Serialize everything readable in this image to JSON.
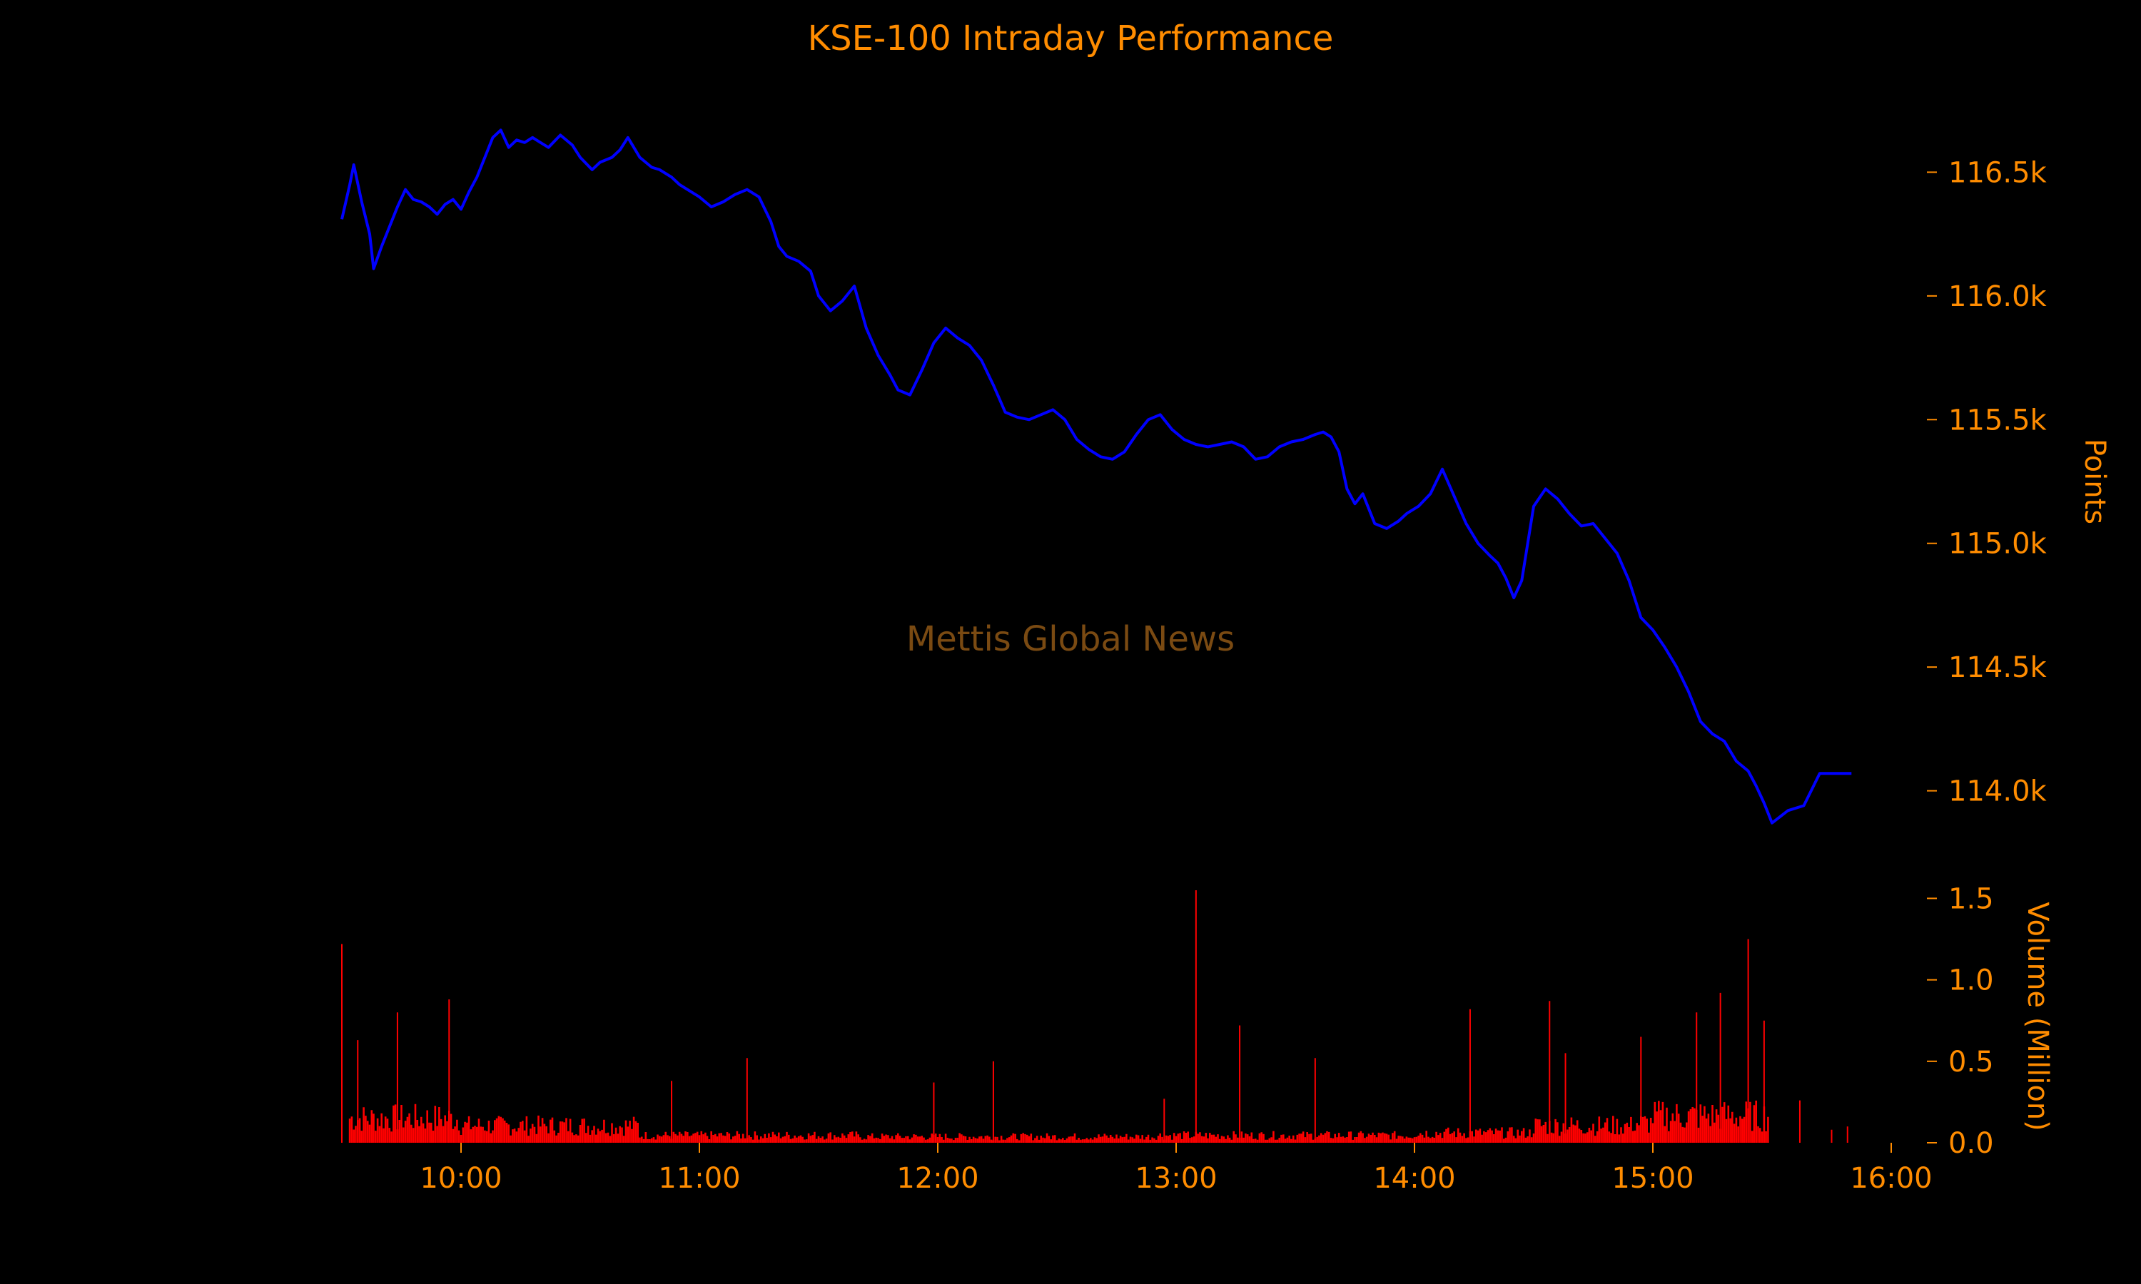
{
  "chart_data": {
    "type": "line",
    "title": "KSE-100 Intraday Performance",
    "watermark": "Mettis Global News",
    "price_panel": {
      "ylabel": "Points",
      "ylim": [
        113650,
        116850
      ],
      "yticks": [
        114000,
        114500,
        115000,
        115500,
        116000,
        116500
      ],
      "ytick_labels": [
        "114.0k",
        "114.5k",
        "115.0k",
        "115.5k",
        "116.0k",
        "116.5k"
      ],
      "series": [
        {
          "x": [
            "09:30",
            "09:32",
            "09:33",
            "09:35",
            "09:37",
            "09:38",
            "09:40",
            "09:42",
            "09:44",
            "09:46",
            "09:48",
            "09:50",
            "09:52",
            "09:54",
            "09:56",
            "09:58",
            "10:00",
            "10:02",
            "10:04",
            "10:06",
            "10:08",
            "10:10",
            "10:12",
            "10:14",
            "10:16",
            "10:18",
            "10:20",
            "10:22",
            "10:25",
            "10:28",
            "10:30",
            "10:33",
            "10:35",
            "10:38",
            "10:40",
            "10:42",
            "10:45",
            "10:48",
            "10:50",
            "10:53",
            "10:55",
            "10:58",
            "11:00",
            "11:03",
            "11:06",
            "11:09",
            "11:12",
            "11:15",
            "11:18",
            "11:20",
            "11:22",
            "11:25",
            "11:28",
            "11:30",
            "11:33",
            "11:36",
            "11:39",
            "11:42",
            "11:45",
            "11:48",
            "11:50",
            "11:53",
            "11:56",
            "11:59",
            "12:02",
            "12:05",
            "12:08",
            "12:11",
            "12:14",
            "12:17",
            "12:20",
            "12:23",
            "12:26",
            "12:29",
            "12:32",
            "12:35",
            "12:38",
            "12:41",
            "12:44",
            "12:47",
            "12:50",
            "12:53",
            "12:56",
            "12:59",
            "13:02",
            "13:05",
            "13:08",
            "13:11",
            "13:14",
            "13:17",
            "13:20",
            "13:23",
            "13:26",
            "13:29",
            "13:32",
            "13:35",
            "13:37",
            "13:39",
            "13:41",
            "13:43",
            "13:45",
            "13:47",
            "13:50",
            "13:53",
            "13:56",
            "13:58",
            "14:01",
            "14:04",
            "14:07",
            "14:10",
            "14:13",
            "14:16",
            "14:19",
            "14:21",
            "14:23",
            "14:25",
            "14:27",
            "14:30",
            "14:33",
            "14:36",
            "14:39",
            "14:42",
            "14:45",
            "14:48",
            "14:51",
            "14:54",
            "14:57",
            "15:00",
            "15:03",
            "15:06",
            "15:09",
            "15:12",
            "15:15",
            "15:18",
            "15:21",
            "15:24",
            "15:26",
            "15:28",
            "15:30",
            "15:34",
            "15:38",
            "15:42",
            "15:46",
            "15:50"
          ],
          "values": [
            116310,
            116450,
            116530,
            116380,
            116250,
            116110,
            116200,
            116280,
            116360,
            116430,
            116390,
            116380,
            116360,
            116330,
            116370,
            116390,
            116350,
            116420,
            116480,
            116560,
            116640,
            116670,
            116600,
            116630,
            116620,
            116640,
            116620,
            116600,
            116650,
            116610,
            116560,
            116510,
            116540,
            116560,
            116590,
            116640,
            116560,
            116520,
            116510,
            116480,
            116450,
            116420,
            116400,
            116360,
            116380,
            116410,
            116430,
            116400,
            116300,
            116200,
            116160,
            116140,
            116100,
            116000,
            115940,
            115980,
            116040,
            115870,
            115760,
            115680,
            115620,
            115600,
            115700,
            115810,
            115870,
            115830,
            115800,
            115740,
            115640,
            115530,
            115510,
            115500,
            115520,
            115540,
            115500,
            115420,
            115380,
            115350,
            115340,
            115370,
            115440,
            115500,
            115520,
            115460,
            115420,
            115400,
            115390,
            115400,
            115410,
            115390,
            115340,
            115350,
            115390,
            115410,
            115420,
            115440,
            115450,
            115430,
            115370,
            115220,
            115160,
            115200,
            115080,
            115060,
            115090,
            115120,
            115150,
            115200,
            115300,
            115190,
            115080,
            115000,
            114950,
            114920,
            114860,
            114780,
            114850,
            115150,
            115220,
            115180,
            115120,
            115070,
            115080,
            115020,
            114960,
            114850,
            114700,
            114650,
            114580,
            114500,
            114400,
            114280,
            114230,
            114200,
            114120,
            114080,
            114020,
            113950,
            113870,
            113920,
            113940,
            114070,
            114070,
            114070
          ]
        }
      ]
    },
    "volume_panel": {
      "ylabel": "Volume (Million)",
      "ylim": [
        0,
        1.55
      ],
      "yticks": [
        0.0,
        0.5,
        1.0,
        1.5
      ],
      "ytick_labels": [
        "0.0",
        "0.5",
        "1.0",
        "1.5"
      ],
      "bar_color": "#ff0000",
      "spikes": [
        {
          "t": "09:30",
          "v": 1.22
        },
        {
          "t": "09:34",
          "v": 0.63
        },
        {
          "t": "09:44",
          "v": 0.8
        },
        {
          "t": "09:57",
          "v": 0.88
        },
        {
          "t": "10:53",
          "v": 0.38
        },
        {
          "t": "11:12",
          "v": 0.52
        },
        {
          "t": "11:59",
          "v": 0.37
        },
        {
          "t": "12:14",
          "v": 0.5
        },
        {
          "t": "12:57",
          "v": 0.27
        },
        {
          "t": "13:05",
          "v": 1.55
        },
        {
          "t": "13:16",
          "v": 0.72
        },
        {
          "t": "13:35",
          "v": 0.52
        },
        {
          "t": "14:14",
          "v": 0.82
        },
        {
          "t": "14:34",
          "v": 0.87
        },
        {
          "t": "14:38",
          "v": 0.55
        },
        {
          "t": "14:57",
          "v": 0.65
        },
        {
          "t": "15:11",
          "v": 0.8
        },
        {
          "t": "15:17",
          "v": 0.92
        },
        {
          "t": "15:24",
          "v": 1.25
        },
        {
          "t": "15:28",
          "v": 0.75
        }
      ],
      "after_hours_ticks": [
        {
          "t": "15:37",
          "v": 0.26
        },
        {
          "t": "15:45",
          "v": 0.08
        },
        {
          "t": "15:49",
          "v": 0.1
        }
      ]
    },
    "xaxis": {
      "xlim": [
        "09:30",
        "16:00"
      ],
      "xticks": [
        "10:00",
        "11:00",
        "12:00",
        "13:00",
        "14:00",
        "15:00",
        "16:00"
      ]
    },
    "colors": {
      "background": "#000000",
      "text": "#ff8c00",
      "line": "#0000ff",
      "watermark": "#7a4a12"
    }
  }
}
